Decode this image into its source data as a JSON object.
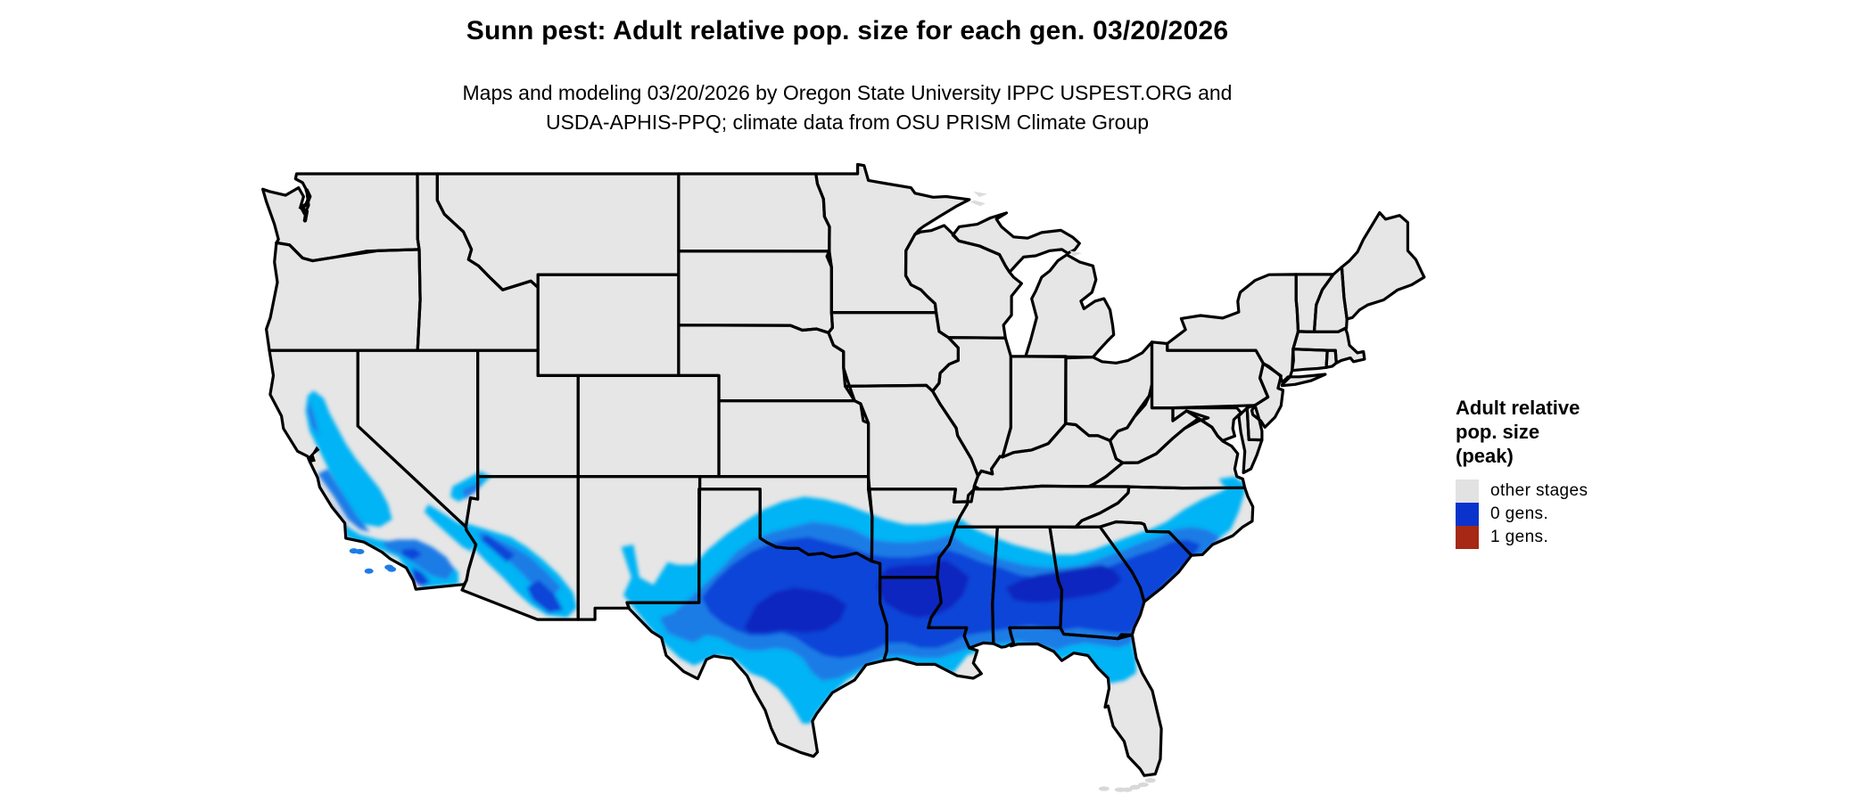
{
  "header": {
    "title": "Sunn pest: Adult relative pop. size for each gen. 03/20/2026",
    "subtitle_line1": "Maps and modeling 03/20/2026 by Oregon State University IPPC USPEST.ORG and",
    "subtitle_line2": "USDA-APHIS-PPQ; climate data from OSU PRISM Climate Group"
  },
  "legend": {
    "title_lines": [
      "Adult relative",
      "pop. size",
      "(peak)"
    ],
    "items": [
      {
        "id": "other-stages",
        "label": "other stages",
        "color": "#e2e2e2"
      },
      {
        "id": "0-gens",
        "label": "0 gens.",
        "color": "#0a33cc"
      },
      {
        "id": "1-gens",
        "label": "1 gens.",
        "color": "#a52914"
      }
    ]
  },
  "map": {
    "colors": {
      "land": "#e6e6e6",
      "border": "#000000",
      "water_detail": "#000000",
      "island_gray": "#d8d8d8",
      "neighbor_gray": "#dcdcdc"
    },
    "heat_palette": [
      "#00b4f5",
      "#1e7ce6",
      "#0c45d8",
      "#0728bf"
    ]
  }
}
